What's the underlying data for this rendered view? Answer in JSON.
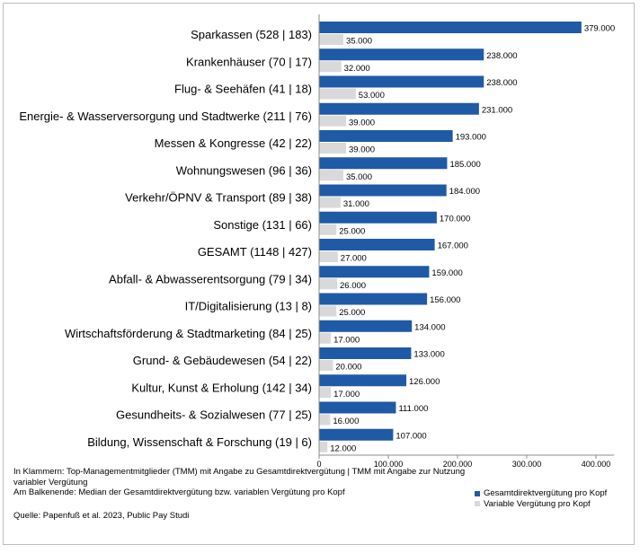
{
  "chart_data": {
    "type": "bar",
    "orientation": "horizontal",
    "categories": [
      "Sparkassen (528 | 183)",
      "Krankenhäuser (70 | 17)",
      "Flug- & Seehäfen (41 | 18)",
      "Energie- & Wasserversorgung und Stadtwerke  (211 | 76)",
      "Messen & Kongresse (42 | 22)",
      "Wohnungswesen (96 | 36)",
      "Verkehr/ÖPNV & Transport (89 | 38)",
      "Sonstige (131 | 66)",
      "GESAMT (1148 | 427)",
      "Abfall- & Abwasserentsorgung (79 | 34)",
      "IT/Digitalisierung (13 | 8)",
      "Wirtschaftsförderung & Stadtmarketing (84 | 25)",
      "Grund- & Gebäudewesen (54 | 22)",
      "Kultur, Kunst & Erholung (142 | 34)",
      "Gesundheits- & Sozialwesen (77 | 25)",
      "Bildung, Wissenschaft & Forschung (19 | 6)"
    ],
    "series": [
      {
        "name": "Gesamtdirektvergütung pro Kopf",
        "color": "#1f5aa6",
        "values": [
          379000,
          238000,
          238000,
          231000,
          193000,
          185000,
          184000,
          170000,
          167000,
          159000,
          156000,
          134000,
          133000,
          126000,
          111000,
          107000
        ],
        "value_labels": [
          "379.000",
          "238.000",
          "238.000",
          "231.000",
          "193.000",
          "185.000",
          "184.000",
          "170.000",
          "167.000",
          "159.000",
          "156.000",
          "134.000",
          "133.000",
          "126.000",
          "111.000",
          "107.000"
        ]
      },
      {
        "name": "Variable Vergütung pro Kopf",
        "color": "#d9d9d9",
        "values": [
          35000,
          32000,
          53000,
          39000,
          39000,
          35000,
          31000,
          25000,
          27000,
          26000,
          25000,
          17000,
          20000,
          17000,
          16000,
          12000
        ],
        "value_labels": [
          "35.000",
          "32.000",
          "53.000",
          "39.000",
          "39.000",
          "35.000",
          "31.000",
          "25.000",
          "27.000",
          "26.000",
          "25.000",
          "17.000",
          "20.000",
          "17.000",
          "16.000",
          "12.000"
        ]
      }
    ],
    "xlim": [
      0,
      420000
    ],
    "xticks": [
      0,
      100000,
      200000,
      300000,
      400000
    ],
    "xtick_labels": [
      "0",
      "100.000",
      "200.000",
      "300.000",
      "400.000"
    ],
    "grid": false,
    "legend_position": "bottom-right"
  },
  "notes": {
    "line1": "In Klammern: Top-Managementmitglieder (TMM) mit Angabe zu Gesamtdirektvergütung | TMM mit Angabe zur Nutzung variabler Vergütung",
    "line2": "Am Balkenende: Median der Gesamtdirektvergütung bzw. variablen Vergütung pro Kopf"
  },
  "source": "Quelle: Papenfuß et al. 2023, Public Pay Studi",
  "legend": {
    "items": [
      {
        "label": "Gesamtdirektvergütung pro Kopf",
        "color": "#1f5aa6"
      },
      {
        "label": "Variable Vergütung pro Kopf",
        "color": "#d9d9d9"
      }
    ]
  }
}
